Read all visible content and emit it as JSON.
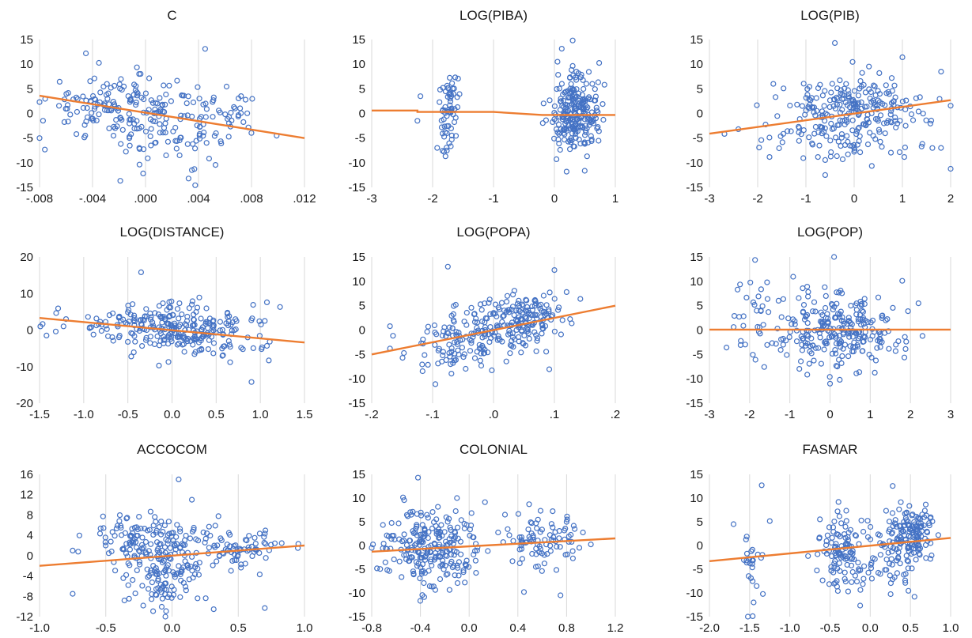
{
  "colors": {
    "points": "#4472c4",
    "fit": "#ed7d31",
    "grid": "#d9d9d9"
  },
  "chart_data": [
    {
      "type": "scatter",
      "title": "C",
      "xlim": [
        -0.008,
        0.012
      ],
      "ylim": [
        -15,
        15
      ],
      "xticks": [
        -0.008,
        -0.004,
        0.0,
        0.004,
        0.008,
        0.012
      ],
      "xtick_labels": [
        "-.008",
        "-.004",
        ".000",
        ".004",
        ".008",
        ".012"
      ],
      "yticks": [
        -15,
        -10,
        -5,
        0,
        5,
        10,
        15
      ],
      "ytick_labels": [
        "-15",
        "-10",
        "-5",
        "0",
        "5",
        "10",
        "15"
      ],
      "fit": {
        "x": [
          -0.008,
          0.012
        ],
        "y": [
          3.6,
          -5.0
        ]
      },
      "clusters": [
        {
          "cx": -0.002,
          "cy": 1.5,
          "sx": 0.0028,
          "sy": 3.2,
          "n": 150
        },
        {
          "cx": 0.002,
          "cy": -4.5,
          "sx": 0.002,
          "sy": 3.2,
          "n": 70
        },
        {
          "cx": 0.006,
          "cy": 0.0,
          "sx": 0.0015,
          "sy": 2.5,
          "n": 35
        }
      ],
      "outliers": [
        [
          -0.0045,
          12.2
        ],
        [
          0.0045,
          13.1
        ],
        [
          0.0035,
          -11.5
        ],
        [
          0.0099,
          -4.5
        ]
      ]
    },
    {
      "type": "scatter",
      "title": "LOG(PIBA)",
      "xlim": [
        -3,
        1
      ],
      "ylim": [
        -15,
        15
      ],
      "xticks": [
        -3,
        -2,
        -1,
        0,
        1
      ],
      "xtick_labels": [
        "-3",
        "-2",
        "-1",
        "0",
        "1"
      ],
      "yticks": [
        -15,
        -10,
        -5,
        0,
        5,
        10,
        15
      ],
      "ytick_labels": [
        "-15",
        "-10",
        "-5",
        "0",
        "5",
        "10",
        "15"
      ],
      "fit": {
        "x": [
          -3.0,
          -2.25,
          -2.25,
          -1.0,
          -0.2,
          1.0
        ],
        "y": [
          0.6,
          0.6,
          0.3,
          0.3,
          -0.3,
          -0.3
        ]
      },
      "clusters": [
        {
          "cx": -1.72,
          "cy": 2.5,
          "sx": 0.07,
          "sy": 2.8,
          "n": 50
        },
        {
          "cx": -1.75,
          "cy": -6.0,
          "sx": 0.06,
          "sy": 2.0,
          "n": 16
        },
        {
          "cx": 0.33,
          "cy": 0.5,
          "sx": 0.2,
          "sy": 4.0,
          "n": 240
        }
      ],
      "outliers": [
        [
          0.3,
          14.8
        ],
        [
          0.05,
          10.5
        ],
        [
          0.2,
          -11.8
        ],
        [
          -2.2,
          3.5
        ],
        [
          -2.25,
          -1.5
        ]
      ]
    },
    {
      "type": "scatter",
      "title": "LOG(PIB)",
      "xlim": [
        -3,
        2
      ],
      "ylim": [
        -15,
        15
      ],
      "xticks": [
        -3,
        -2,
        -1,
        0,
        1,
        2
      ],
      "xtick_labels": [
        "-3",
        "-2",
        "-1",
        "0",
        "1",
        "2"
      ],
      "yticks": [
        -15,
        -10,
        -5,
        0,
        5,
        10,
        15
      ],
      "ytick_labels": [
        "-15",
        "-10",
        "-5",
        "0",
        "5",
        "10",
        "15"
      ],
      "fit": {
        "x": [
          -3,
          2
        ],
        "y": [
          -4.1,
          2.7
        ]
      },
      "clusters": [
        {
          "cx": 0.0,
          "cy": 1.5,
          "sx": 0.75,
          "sy": 3.0,
          "n": 210
        },
        {
          "cx": -0.2,
          "cy": -6.0,
          "sx": 0.9,
          "sy": 2.2,
          "n": 70
        }
      ],
      "outliers": [
        [
          -0.4,
          14.3
        ],
        [
          1.0,
          11.4
        ],
        [
          -2.4,
          -3.2
        ],
        [
          1.8,
          -7.0
        ],
        [
          -0.6,
          -12.5
        ]
      ]
    },
    {
      "type": "scatter",
      "title": "LOG(DISTANCE)",
      "xlim": [
        -1.5,
        1.5
      ],
      "ylim": [
        -20,
        20
      ],
      "xticks": [
        -1.5,
        -1.0,
        -0.5,
        0.0,
        0.5,
        1.0,
        1.5
      ],
      "xtick_labels": [
        "-1.5",
        "-1.0",
        "-0.5",
        "0.0",
        "0.5",
        "1.0",
        "1.5"
      ],
      "yticks": [
        -20,
        -10,
        0,
        10,
        20
      ],
      "ytick_labels": [
        "-20",
        "-10",
        "0",
        "10",
        "20"
      ],
      "fit": {
        "x": [
          -1.5,
          1.5
        ],
        "y": [
          3.3,
          -3.4
        ]
      },
      "clusters": [
        {
          "cx": 0.05,
          "cy": 0.5,
          "sx": 0.35,
          "sy": 3.8,
          "n": 240
        },
        {
          "cx": -0.9,
          "cy": 1.5,
          "sx": 0.25,
          "sy": 1.8,
          "n": 25
        },
        {
          "cx": 0.8,
          "cy": -2.0,
          "sx": 0.2,
          "sy": 3.0,
          "n": 20
        }
      ],
      "outliers": [
        [
          -0.35,
          15.8
        ],
        [
          0.9,
          -14.2
        ],
        [
          -1.2,
          3.0
        ],
        [
          1.05,
          2.5
        ]
      ]
    },
    {
      "type": "scatter",
      "title": "LOG(POPA)",
      "xlim": [
        -0.2,
        0.2
      ],
      "ylim": [
        -15,
        15
      ],
      "xticks": [
        -0.2,
        -0.1,
        0.0,
        0.1,
        0.2
      ],
      "xtick_labels": [
        "-.2",
        "-.1",
        ".0",
        ".1",
        ".2"
      ],
      "yticks": [
        -15,
        -10,
        -5,
        0,
        5,
        10,
        15
      ],
      "ytick_labels": [
        "-15",
        "-10",
        "-5",
        "0",
        "5",
        "10",
        "15"
      ],
      "fit": {
        "x": [
          -0.2,
          0.2
        ],
        "y": [
          -5.0,
          5.0
        ]
      },
      "clusters": [
        {
          "cx": 0.05,
          "cy": 2.0,
          "sx": 0.035,
          "sy": 3.0,
          "n": 160
        },
        {
          "cx": -0.05,
          "cy": -2.0,
          "sx": 0.04,
          "sy": 3.5,
          "n": 130
        }
      ],
      "outliers": [
        [
          -0.075,
          13.0
        ],
        [
          0.1,
          12.3
        ],
        [
          -0.17,
          -3.8
        ],
        [
          -0.17,
          0.8
        ],
        [
          0.12,
          7.8
        ]
      ]
    },
    {
      "type": "scatter",
      "title": "LOG(POP)",
      "xlim": [
        -3,
        3
      ],
      "ylim": [
        -15,
        15
      ],
      "xticks": [
        -3,
        -2,
        -1,
        0,
        1,
        2,
        3
      ],
      "xtick_labels": [
        "-3",
        "-2",
        "-1",
        "0",
        "1",
        "2",
        "3"
      ],
      "yticks": [
        -15,
        -10,
        -5,
        0,
        5,
        10,
        15
      ],
      "ytick_labels": [
        "-15",
        "-10",
        "-5",
        "0",
        "5",
        "10",
        "15"
      ],
      "fit": {
        "x": [
          -3,
          3
        ],
        "y": [
          0.1,
          0.1
        ]
      },
      "clusters": [
        {
          "cx": 0.2,
          "cy": 0.0,
          "sx": 0.85,
          "sy": 3.8,
          "n": 260
        },
        {
          "cx": -1.9,
          "cy": 3.0,
          "sx": 0.3,
          "sy": 4.0,
          "n": 25
        }
      ],
      "outliers": [
        [
          0.1,
          15.0
        ],
        [
          -2.3,
          8.3
        ],
        [
          2.2,
          5.5
        ],
        [
          2.3,
          -1.2
        ],
        [
          0.0,
          -11.0
        ]
      ]
    },
    {
      "type": "scatter",
      "title": "ACCOCOM",
      "xlim": [
        -1.0,
        1.0
      ],
      "ylim": [
        -12,
        16
      ],
      "xticks": [
        -1.0,
        -0.5,
        0.0,
        0.5,
        1.0
      ],
      "xtick_labels": [
        "-1.0",
        "-0.5",
        "0.0",
        "0.5",
        "1.0"
      ],
      "yticks": [
        -12,
        -8,
        -4,
        0,
        4,
        8,
        12,
        16
      ],
      "ytick_labels": [
        "-12",
        "-8",
        "-4",
        "0",
        "4",
        "8",
        "12",
        "16"
      ],
      "fit": {
        "x": [
          -1.0,
          1.0
        ],
        "y": [
          -2.0,
          2.0
        ]
      },
      "clusters": [
        {
          "cx": -0.2,
          "cy": 3.0,
          "sx": 0.2,
          "sy": 2.5,
          "n": 130
        },
        {
          "cx": -0.05,
          "cy": -4.0,
          "sx": 0.15,
          "sy": 3.0,
          "n": 110
        },
        {
          "cx": 0.45,
          "cy": 1.5,
          "sx": 0.22,
          "sy": 1.8,
          "n": 80
        }
      ],
      "outliers": [
        [
          0.05,
          15.0
        ],
        [
          0.15,
          11.0
        ],
        [
          -0.75,
          -7.5
        ],
        [
          0.7,
          -10.3
        ],
        [
          -0.75,
          1.0
        ],
        [
          0.95,
          1.5
        ]
      ]
    },
    {
      "type": "scatter",
      "title": "COLONIAL",
      "xlim": [
        -0.8,
        1.2
      ],
      "ylim": [
        -15,
        15
      ],
      "xticks": [
        -0.8,
        -0.4,
        0.0,
        0.4,
        0.8,
        1.2
      ],
      "xtick_labels": [
        "-0.8",
        "-0.4",
        "0.0",
        "0.4",
        "0.8",
        "1.2"
      ],
      "yticks": [
        -15,
        -10,
        -5,
        0,
        5,
        10,
        15
      ],
      "ytick_labels": [
        "-15",
        "-10",
        "-5",
        "0",
        "5",
        "10",
        "15"
      ],
      "fit": {
        "x": [
          -0.8,
          1.2
        ],
        "y": [
          -1.3,
          1.5
        ]
      },
      "clusters": [
        {
          "cx": -0.3,
          "cy": 0.0,
          "sx": 0.2,
          "sy": 4.2,
          "n": 240
        },
        {
          "cx": 0.58,
          "cy": 1.5,
          "sx": 0.15,
          "sy": 3.0,
          "n": 90
        }
      ],
      "outliers": [
        [
          -0.42,
          14.3
        ],
        [
          -0.1,
          10.0
        ],
        [
          0.75,
          -10.5
        ],
        [
          0.45,
          -9.8
        ]
      ]
    },
    {
      "type": "scatter",
      "title": "FASMAR",
      "xlim": [
        -2.0,
        1.0
      ],
      "ylim": [
        -15,
        15
      ],
      "xticks": [
        -2.0,
        -1.5,
        -1.0,
        -0.5,
        0.0,
        0.5,
        1.0
      ],
      "xtick_labels": [
        "-2.0",
        "-1.5",
        "-1.0",
        "-0.5",
        "0.0",
        "0.5",
        "1.0"
      ],
      "yticks": [
        -15,
        -10,
        -5,
        0,
        5,
        10,
        15
      ],
      "ytick_labels": [
        "-15",
        "-10",
        "-5",
        "0",
        "5",
        "10",
        "15"
      ],
      "fit": {
        "x": [
          -2.0,
          1.0
        ],
        "y": [
          -3.3,
          1.6
        ]
      },
      "clusters": [
        {
          "cx": 0.5,
          "cy": 2.5,
          "sx": 0.15,
          "sy": 3.2,
          "n": 150
        },
        {
          "cx": -0.35,
          "cy": -1.5,
          "sx": 0.15,
          "sy": 4.2,
          "n": 110
        },
        {
          "cx": 0.15,
          "cy": -4.0,
          "sx": 0.2,
          "sy": 3.0,
          "n": 40
        },
        {
          "cx": -1.45,
          "cy": -2.0,
          "sx": 0.07,
          "sy": 5.0,
          "n": 25
        }
      ],
      "outliers": [
        [
          -1.35,
          12.7
        ],
        [
          -1.7,
          4.5
        ],
        [
          -1.45,
          -12.0
        ],
        [
          0.55,
          -10.8
        ]
      ]
    }
  ]
}
